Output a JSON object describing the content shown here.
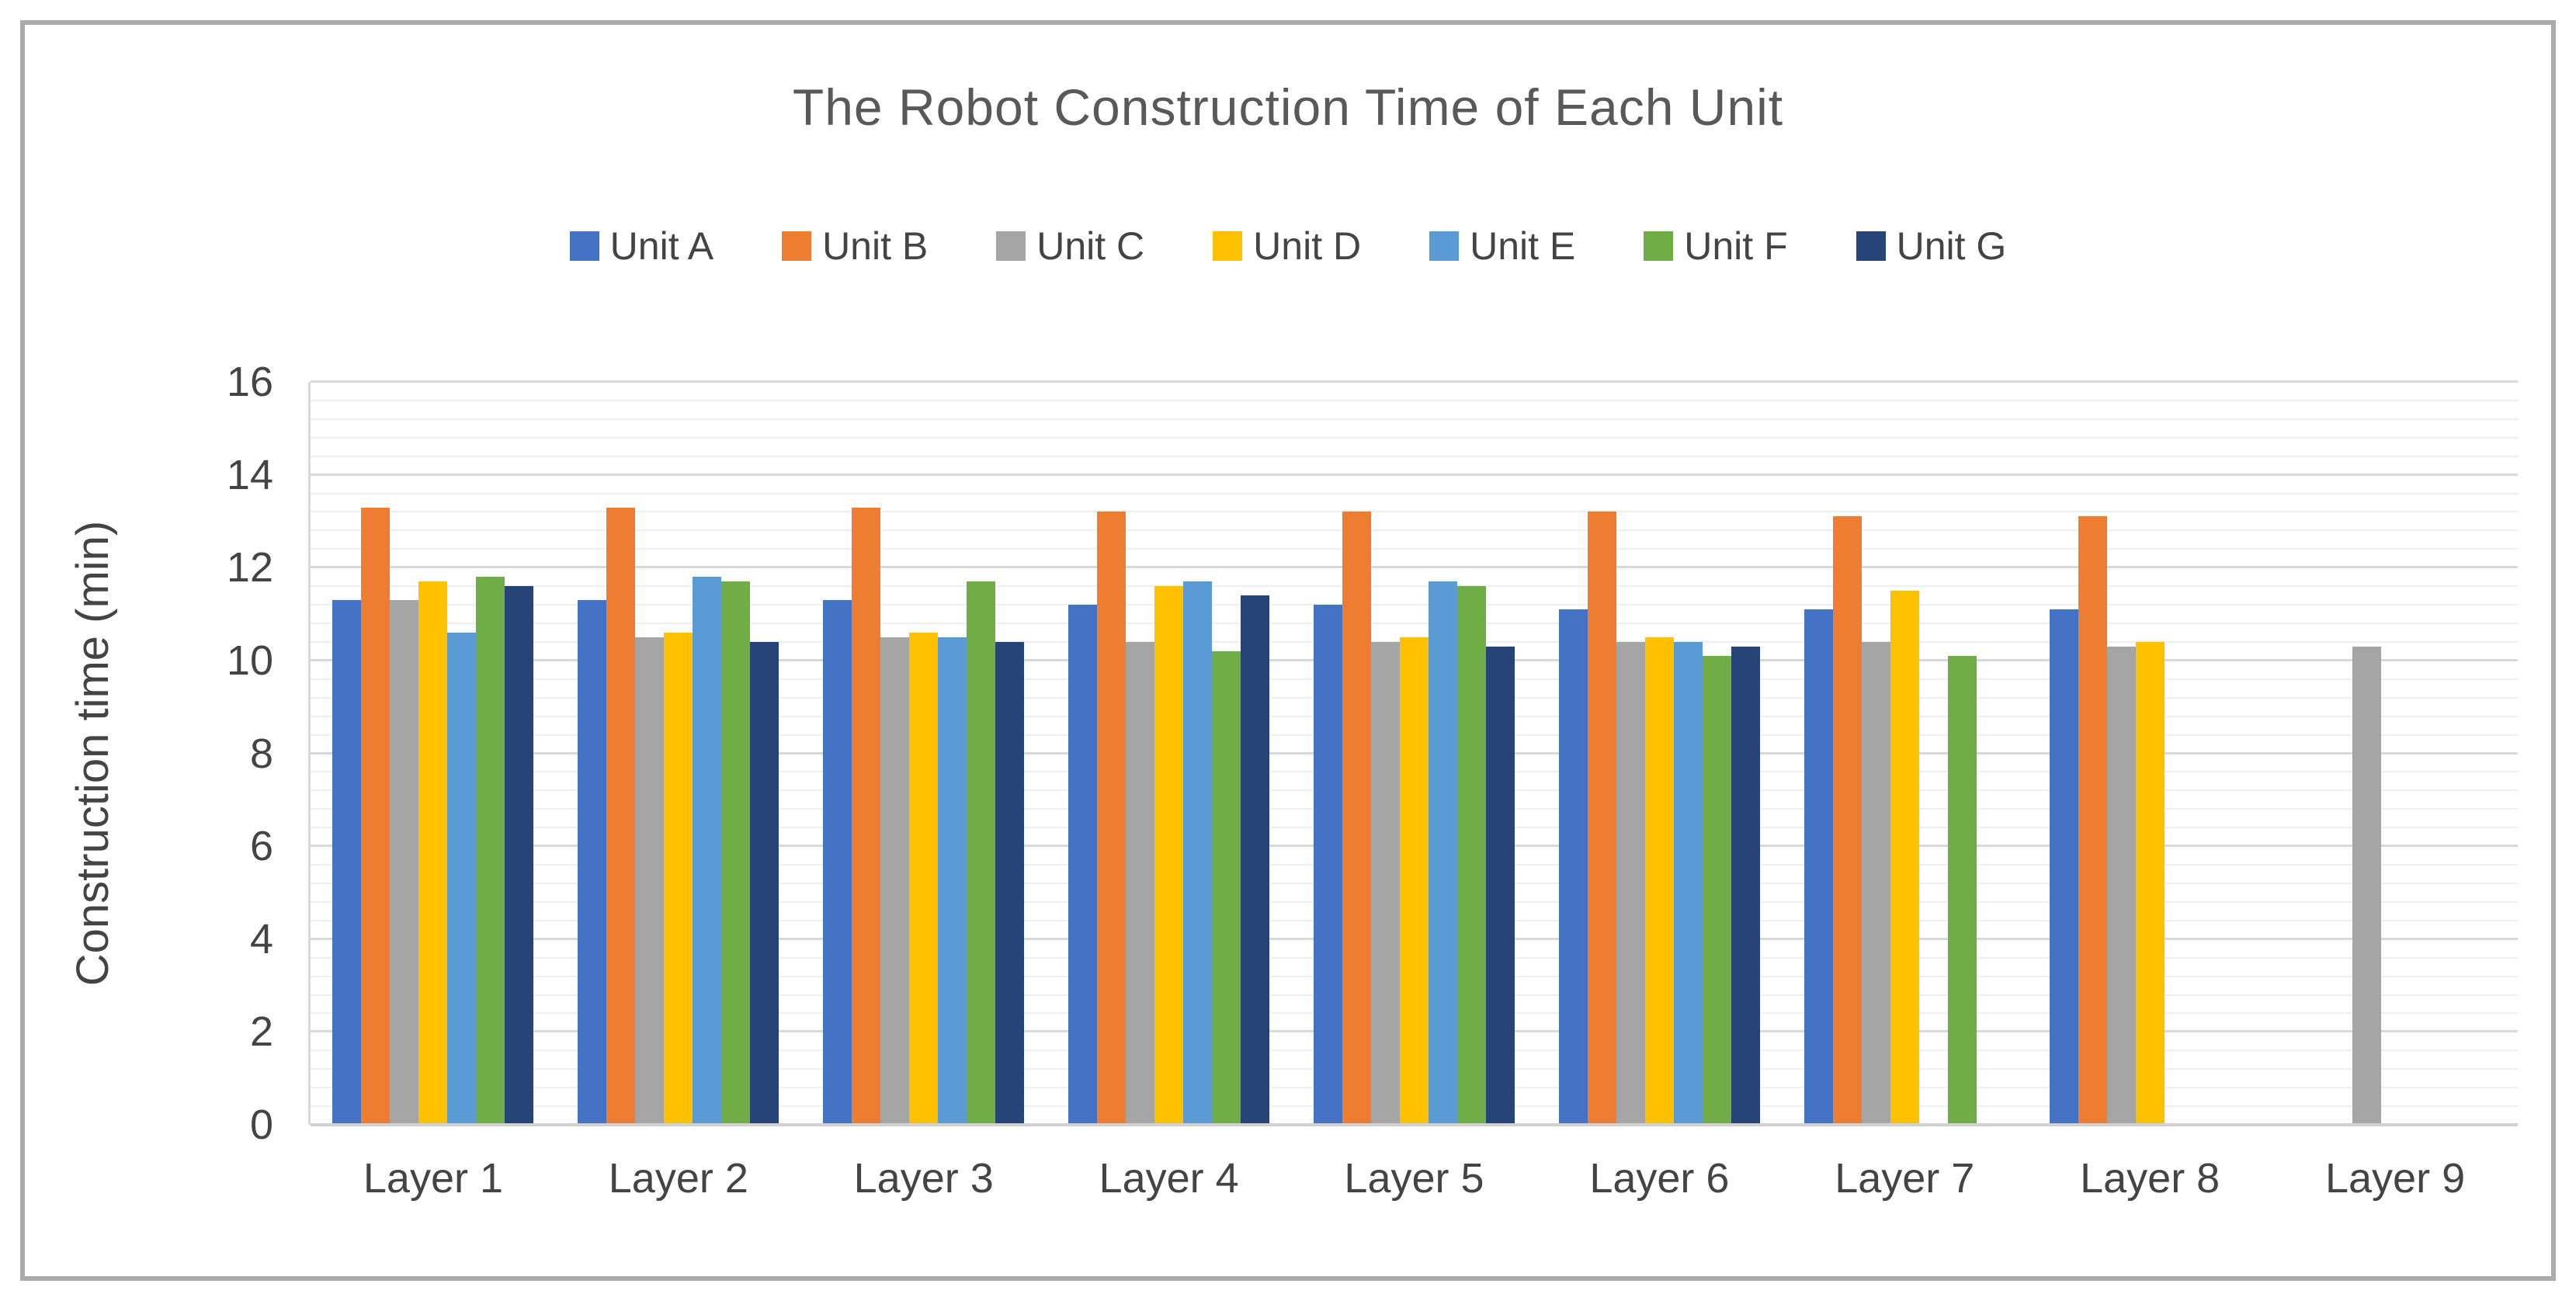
{
  "palette": {
    "frame_border": "#ababab",
    "title_color": "#595959",
    "label_color": "#444444",
    "grid_major": "#d9d9d9",
    "grid_minor": "#efefef",
    "grid_baseline": "#d0d0d0"
  },
  "chart_data": {
    "type": "bar",
    "title": "The Robot Construction Time of Each Unit",
    "xlabel": "",
    "ylabel": "Construction time (min)",
    "categories": [
      "Layer 1",
      "Layer 2",
      "Layer 3",
      "Layer 4",
      "Layer 5",
      "Layer 6",
      "Layer 7",
      "Layer 8",
      "Layer 9"
    ],
    "series": [
      {
        "name": "Unit A",
        "color": "#4472c4",
        "values": [
          11.3,
          11.3,
          11.3,
          11.2,
          11.2,
          11.1,
          11.1,
          11.1,
          0
        ]
      },
      {
        "name": "Unit B",
        "color": "#ed7d31",
        "values": [
          13.3,
          13.3,
          13.3,
          13.2,
          13.2,
          13.2,
          13.1,
          13.1,
          0
        ]
      },
      {
        "name": "Unit C",
        "color": "#a5a5a5",
        "values": [
          11.3,
          10.5,
          10.5,
          10.4,
          10.4,
          10.4,
          10.4,
          10.3,
          10.3
        ]
      },
      {
        "name": "Unit D",
        "color": "#ffc000",
        "values": [
          11.7,
          10.6,
          10.6,
          11.6,
          10.5,
          10.5,
          11.5,
          10.4,
          0
        ]
      },
      {
        "name": "Unit E",
        "color": "#5b9bd5",
        "values": [
          10.6,
          11.8,
          10.5,
          11.7,
          11.7,
          10.4,
          0,
          0,
          0
        ]
      },
      {
        "name": "Unit F",
        "color": "#70ad47",
        "values": [
          11.8,
          11.7,
          11.7,
          10.2,
          11.6,
          10.1,
          10.1,
          0,
          0
        ]
      },
      {
        "name": "Unit G",
        "color": "#264478",
        "values": [
          11.6,
          10.4,
          10.4,
          11.4,
          10.3,
          10.3,
          0,
          0,
          0
        ]
      }
    ],
    "ylim": [
      0,
      16
    ],
    "ytick_labels": [
      "0",
      "2",
      "4",
      "6",
      "8",
      "10",
      "12",
      "14",
      "16"
    ],
    "ytick_step": 2,
    "minor_gridline_step": 0.4,
    "grid": true,
    "legend_position": "top"
  }
}
